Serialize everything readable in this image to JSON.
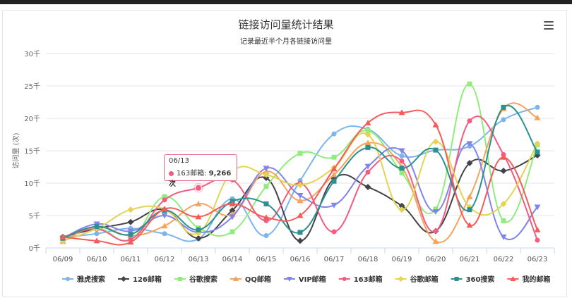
{
  "chart_data": {
    "type": "line",
    "title": "链接访问量统计结果",
    "subtitle": "记录最近半个月各链接访问量",
    "ylabel": "访问量 (次)",
    "xlabel": "",
    "ylim": [
      0,
      30000
    ],
    "yticks": [
      "0千",
      "5千",
      "10千",
      "15千",
      "20千",
      "25千",
      "30千"
    ],
    "categories": [
      "06/09",
      "06/10",
      "06/11",
      "06/12",
      "06/13",
      "06/14",
      "06/15",
      "06/16",
      "06/17",
      "06/18",
      "06/19",
      "06/20",
      "06/21",
      "06/22",
      "06/23"
    ],
    "legend_position": "bottom",
    "grid": true,
    "series": [
      {
        "name": "雅虎搜索",
        "color": "#7cb5ec",
        "marker": "circle",
        "values": [
          1600,
          2200,
          3000,
          2200,
          1400,
          7600,
          1900,
          10400,
          17600,
          18300,
          14200,
          15100,
          15700,
          19800,
          21700
        ]
      },
      {
        "name": "126邮箱",
        "color": "#434348",
        "marker": "diamond",
        "values": [
          1700,
          3000,
          4000,
          5900,
          1500,
          5800,
          10800,
          1100,
          10700,
          9400,
          6500,
          2600,
          13100,
          11900,
          14300
        ]
      },
      {
        "name": "谷歌搜索",
        "color": "#90ed7d",
        "marker": "square",
        "values": [
          1600,
          3100,
          1300,
          7900,
          3100,
          2500,
          9500,
          14600,
          14000,
          18100,
          11600,
          6000,
          25300,
          4200,
          15900
        ]
      },
      {
        "name": "QQ邮箱",
        "color": "#f7a35c",
        "marker": "triangle",
        "values": [
          1000,
          3300,
          1900,
          3400,
          6800,
          5200,
          11800,
          7300,
          11300,
          16200,
          12500,
          1000,
          7900,
          21500,
          20100
        ]
      },
      {
        "name": "VIP邮箱",
        "color": "#8085e9",
        "marker": "triangle-down",
        "values": [
          1500,
          3700,
          2600,
          5000,
          2400,
          4800,
          12300,
          8100,
          6600,
          12600,
          15000,
          5600,
          16100,
          1700,
          6300
        ]
      },
      {
        "name": "163邮箱",
        "color": "#f15c80",
        "marker": "circle",
        "values": [
          1700,
          2900,
          1300,
          7400,
          9266,
          10500,
          4200,
          10000,
          2500,
          11700,
          13400,
          2600,
          19600,
          14400,
          1200
        ]
      },
      {
        "name": "谷歌邮箱",
        "color": "#e4d354",
        "marker": "diamond",
        "values": [
          1100,
          3000,
          5900,
          6000,
          2300,
          11800,
          11300,
          9700,
          12400,
          17500,
          5900,
          16400,
          6300,
          6800,
          16100
        ]
      },
      {
        "name": "360搜索",
        "color": "#2b908f",
        "marker": "square",
        "values": [
          1500,
          3300,
          2100,
          5800,
          2800,
          7200,
          6800,
          2400,
          10300,
          15500,
          12300,
          15100,
          5900,
          21700,
          14800
        ]
      },
      {
        "name": "我的邮箱",
        "color": "#f45b5b",
        "marker": "triangle",
        "values": [
          1700,
          1100,
          900,
          6000,
          4800,
          6800,
          4700,
          5000,
          12200,
          19300,
          20900,
          19000,
          3500,
          14000,
          2800
        ]
      }
    ],
    "tooltip": {
      "date": "06/13",
      "series": "163邮箱",
      "value": "9,266次"
    }
  }
}
